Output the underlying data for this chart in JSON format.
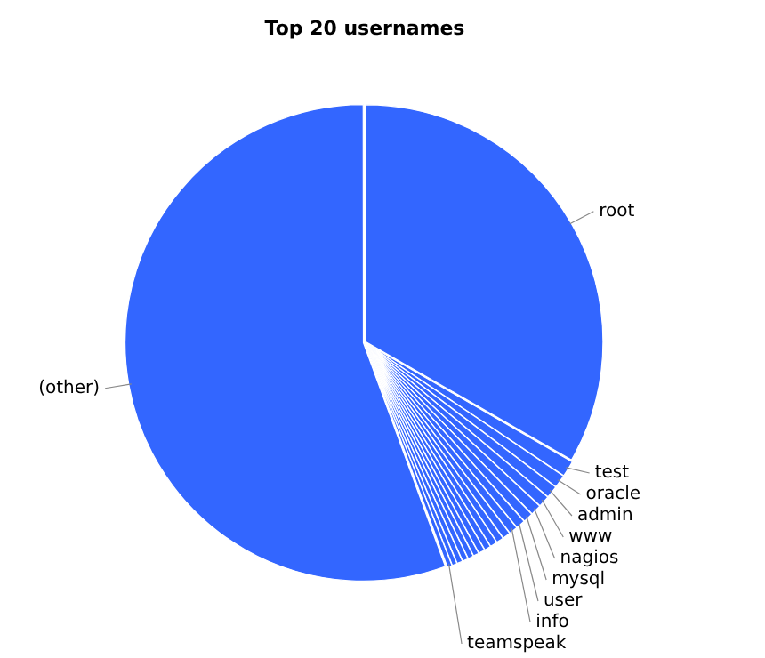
{
  "chart_data": {
    "type": "pie",
    "title": "Top 20 usernames",
    "categories": [
      "root",
      "test",
      "oracle",
      "admin",
      "www",
      "nagios",
      "mysql",
      "user",
      "info",
      null,
      null,
      null,
      null,
      null,
      null,
      null,
      null,
      null,
      null,
      "teamspeak",
      "(other)"
    ],
    "values": [
      33.3,
      1.1,
      0.9,
      0.85,
      0.8,
      0.75,
      0.7,
      0.65,
      0.6,
      0.55,
      0.5,
      0.5,
      0.45,
      0.45,
      0.4,
      0.4,
      0.4,
      0.4,
      0.35,
      0.35,
      55.6
    ],
    "colors": [
      "#3366ff",
      "#3366ff",
      "#3366ff",
      "#3366ff",
      "#3366ff",
      "#3366ff",
      "#3366ff",
      "#3366ff",
      "#3366ff",
      "#3366ff",
      "#3366ff",
      "#3366ff",
      "#3366ff",
      "#3366ff",
      "#3366ff",
      "#3366ff",
      "#3366ff",
      "#3366ff",
      "#3366ff",
      "#3366ff",
      "#3366ff"
    ],
    "legend": false
  }
}
